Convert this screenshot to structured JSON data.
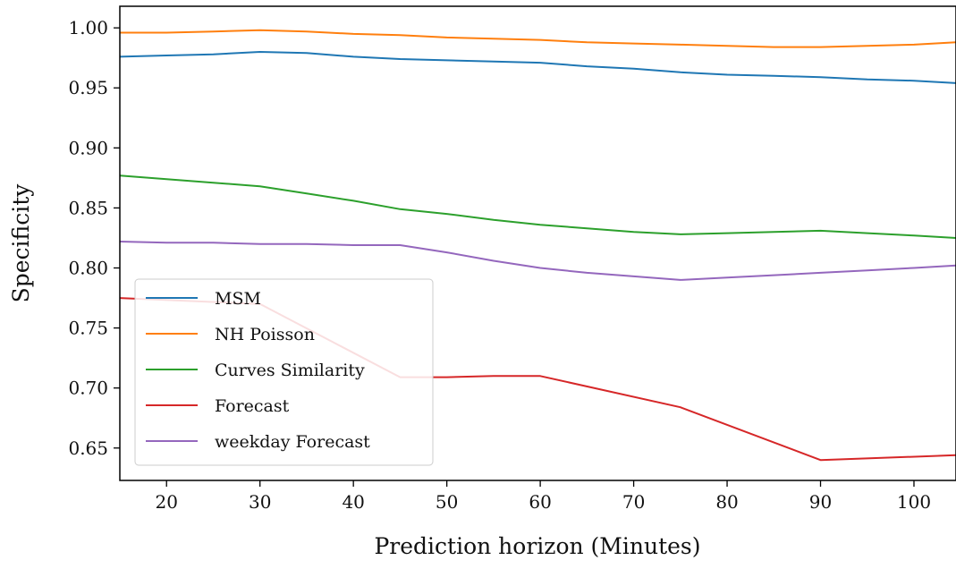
{
  "chart_data": {
    "type": "line",
    "title": "",
    "xlabel": "Prediction horizon (Minutes)",
    "ylabel": "Specificity",
    "xlim": [
      15,
      104.5
    ],
    "ylim": [
      0.623,
      1.018
    ],
    "x_ticks": [
      20,
      30,
      40,
      50,
      60,
      70,
      80,
      90,
      100
    ],
    "y_ticks": [
      0.65,
      0.7,
      0.75,
      0.8,
      0.85,
      0.9,
      0.95,
      1.0
    ],
    "y_tick_labels": [
      "0.65",
      "0.70",
      "0.75",
      "0.80",
      "0.85",
      "0.90",
      "0.95",
      "1.00"
    ],
    "grid": false,
    "legend_position": "lower-left",
    "series": [
      {
        "name": "MSM",
        "color": "#1f77b4",
        "x": [
          15,
          20,
          25,
          30,
          35,
          40,
          45,
          50,
          55,
          60,
          65,
          70,
          75,
          80,
          85,
          90,
          95,
          100,
          104.5
        ],
        "y": [
          0.976,
          0.977,
          0.978,
          0.98,
          0.979,
          0.976,
          0.974,
          0.973,
          0.972,
          0.971,
          0.968,
          0.966,
          0.963,
          0.961,
          0.96,
          0.959,
          0.957,
          0.956,
          0.954
        ]
      },
      {
        "name": "NH Poisson",
        "color": "#ff7f0e",
        "x": [
          15,
          20,
          25,
          30,
          35,
          40,
          45,
          50,
          55,
          60,
          65,
          70,
          75,
          80,
          85,
          90,
          95,
          100,
          104.5
        ],
        "y": [
          0.996,
          0.996,
          0.997,
          0.998,
          0.997,
          0.995,
          0.994,
          0.992,
          0.991,
          0.99,
          0.988,
          0.987,
          0.986,
          0.985,
          0.984,
          0.984,
          0.985,
          0.986,
          0.988
        ]
      },
      {
        "name": "Curves Similarity",
        "color": "#2ca02c",
        "x": [
          15,
          20,
          25,
          30,
          35,
          40,
          45,
          50,
          55,
          60,
          65,
          70,
          75,
          80,
          85,
          90,
          95,
          100,
          104.5
        ],
        "y": [
          0.877,
          0.874,
          0.871,
          0.868,
          0.862,
          0.856,
          0.849,
          0.845,
          0.84,
          0.836,
          0.833,
          0.83,
          0.828,
          0.829,
          0.83,
          0.831,
          0.829,
          0.827,
          0.825
        ]
      },
      {
        "name": "Forecast",
        "color": "#d62728",
        "x": [
          15,
          30,
          45,
          50,
          55,
          60,
          75,
          90,
          104.5
        ],
        "y": [
          0.775,
          0.77,
          0.709,
          0.709,
          0.71,
          0.71,
          0.684,
          0.64,
          0.644
        ]
      },
      {
        "name": "weekday Forecast",
        "color": "#9467bd",
        "x": [
          15,
          20,
          25,
          30,
          35,
          40,
          45,
          50,
          55,
          60,
          65,
          70,
          75,
          80,
          85,
          90,
          95,
          100,
          104.5
        ],
        "y": [
          0.822,
          0.821,
          0.821,
          0.82,
          0.82,
          0.819,
          0.819,
          0.813,
          0.806,
          0.8,
          0.796,
          0.793,
          0.79,
          0.792,
          0.794,
          0.796,
          0.798,
          0.8,
          0.802
        ]
      }
    ]
  }
}
